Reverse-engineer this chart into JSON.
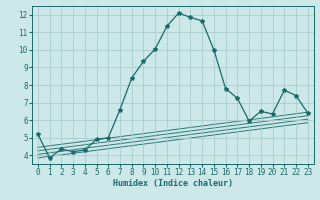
{
  "xlabel": "Humidex (Indice chaleur)",
  "bg_color": "#cce8e8",
  "grid_color": "#aacccc",
  "line_color": "#1a6b6b",
  "xlim": [
    -0.5,
    23.5
  ],
  "ylim": [
    3.5,
    12.5
  ],
  "xticks": [
    0,
    1,
    2,
    3,
    4,
    5,
    6,
    7,
    8,
    9,
    10,
    11,
    12,
    13,
    14,
    15,
    16,
    17,
    18,
    19,
    20,
    21,
    22,
    23
  ],
  "yticks": [
    4,
    5,
    6,
    7,
    8,
    9,
    10,
    11,
    12
  ],
  "series": [
    [
      0,
      5.2
    ],
    [
      1,
      3.85
    ],
    [
      2,
      4.35
    ],
    [
      3,
      4.2
    ],
    [
      4,
      4.3
    ],
    [
      5,
      4.9
    ],
    [
      6,
      5.0
    ],
    [
      7,
      6.6
    ],
    [
      8,
      8.4
    ],
    [
      9,
      9.35
    ],
    [
      10,
      10.05
    ],
    [
      11,
      11.35
    ],
    [
      12,
      12.1
    ],
    [
      13,
      11.85
    ],
    [
      14,
      11.65
    ],
    [
      15,
      10.0
    ],
    [
      16,
      7.8
    ],
    [
      17,
      7.25
    ],
    [
      18,
      5.95
    ],
    [
      19,
      6.5
    ],
    [
      20,
      6.35
    ],
    [
      21,
      7.7
    ],
    [
      22,
      7.4
    ],
    [
      23,
      6.4
    ]
  ],
  "linear_series": [
    [
      [
        0,
        4.45
      ],
      [
        23,
        6.45
      ]
    ],
    [
      [
        0,
        4.25
      ],
      [
        23,
        6.25
      ]
    ],
    [
      [
        0,
        4.05
      ],
      [
        23,
        6.05
      ]
    ],
    [
      [
        0,
        3.85
      ],
      [
        23,
        5.85
      ]
    ]
  ]
}
